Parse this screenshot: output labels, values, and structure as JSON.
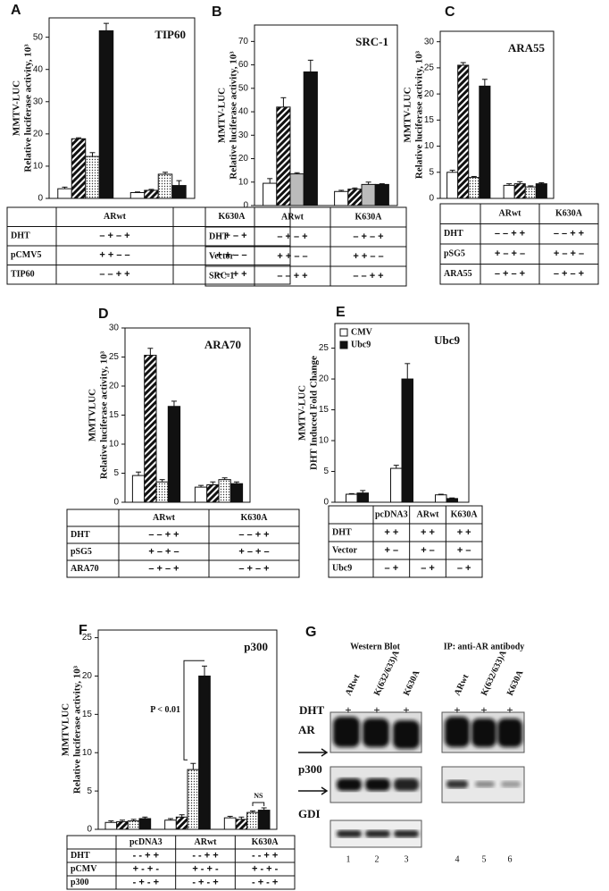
{
  "chart_data": [
    {
      "type": "bar",
      "panel": "A",
      "title": "TIP60",
      "y_label": [
        "MMTV-LUC",
        "Relative luciferase activity, 10³"
      ],
      "values": [
        3,
        18.5,
        13,
        52,
        1.8,
        2.5,
        7.5,
        4
      ],
      "errors": [
        0.5,
        0.3,
        1.2,
        2.3,
        0.2,
        0.3,
        0.6,
        1.5
      ],
      "fills": [
        "white",
        "hatch",
        "dots",
        "black"
      ],
      "ylim": [
        0,
        56
      ],
      "yticks": [
        0,
        10,
        20,
        30,
        40,
        50
      ],
      "table": {
        "groups": [
          "ARwt",
          "K630A"
        ],
        "rows": [
          {
            "label": "DHT",
            "signs": [
              "– + – +",
              "– + – +"
            ]
          },
          {
            "label": "pCMV5",
            "signs": [
              "+ + – –",
              "+ + – –"
            ]
          },
          {
            "label": "TIP60",
            "signs": [
              "– – + +",
              "– – + +"
            ]
          }
        ]
      }
    },
    {
      "type": "bar",
      "panel": "B",
      "title": "SRC-1",
      "y_label": [
        "MMTV-LUC",
        "Relative luciferase activity, 10³"
      ],
      "values": [
        9.5,
        42,
        13.5,
        57,
        6,
        7,
        9,
        9
      ],
      "errors": [
        2,
        4,
        0.5,
        5,
        0.5,
        0.5,
        1,
        0.3
      ],
      "fills": [
        "white",
        "hatch",
        "gray",
        "black"
      ],
      "ylim": [
        0,
        77
      ],
      "yticks": [
        0,
        10,
        20,
        30,
        40,
        50,
        60,
        70
      ],
      "table": {
        "groups": [
          "ARwt",
          "K630A"
        ],
        "rows": [
          {
            "label": "DHT",
            "signs": [
              "– + – +",
              "– + – +"
            ]
          },
          {
            "label": "Vector",
            "signs": [
              "+ + – –",
              "+ + – –"
            ]
          },
          {
            "label": "SRC-1",
            "signs": [
              "– – + +",
              "– – + +"
            ]
          }
        ]
      }
    },
    {
      "type": "bar",
      "panel": "C",
      "title": "ARA55",
      "y_label": [
        "MMTV-LUC",
        "Relative luciferase activity, 10³"
      ],
      "values": [
        5,
        25.5,
        4,
        21.5,
        2.5,
        2.8,
        2.2,
        2.8
      ],
      "errors": [
        0.4,
        0.5,
        0.2,
        1.3,
        0.3,
        0.4,
        0.2,
        0.2
      ],
      "fills": [
        "white",
        "hatch",
        "dots",
        "black"
      ],
      "ylim": [
        0,
        32
      ],
      "yticks": [
        0,
        5,
        10,
        15,
        20,
        25,
        30
      ],
      "table": {
        "groups": [
          "ARwt",
          "K630A"
        ],
        "rows": [
          {
            "label": "DHT",
            "signs": [
              "– – + +",
              "– – + +"
            ]
          },
          {
            "label": "pSG5",
            "signs": [
              "+ – + –",
              "+ – + –"
            ]
          },
          {
            "label": "ARA55",
            "signs": [
              "– + – +",
              "– + – +"
            ]
          }
        ]
      }
    },
    {
      "type": "bar",
      "panel": "D",
      "title": "ARA70",
      "y_label": [
        "MMTVLUC",
        "Relative luciferase activity, 10³"
      ],
      "values": [
        4.6,
        25.3,
        3.5,
        16.5,
        2.6,
        3,
        3.9,
        3.2
      ],
      "errors": [
        0.6,
        1.2,
        0.4,
        0.9,
        0.3,
        0.5,
        0.3,
        0.3
      ],
      "fills": [
        "white",
        "hatch",
        "dots",
        "black"
      ],
      "ylim": [
        0,
        30
      ],
      "yticks": [
        0,
        5,
        10,
        15,
        20,
        25,
        30
      ],
      "table": {
        "groups": [
          "ARwt",
          "K630A"
        ],
        "rows": [
          {
            "label": "DHT",
            "signs": [
              "– – + +",
              "– – + +"
            ]
          },
          {
            "label": "pSG5",
            "signs": [
              "+ – + –",
              "+ – + –"
            ]
          },
          {
            "label": "ARA70",
            "signs": [
              "– + – +",
              "– + – +"
            ]
          }
        ]
      }
    },
    {
      "type": "grouped_bar",
      "panel": "E",
      "title": "Ubc9",
      "y_label": [
        "MMTV-LUC",
        "DHT Induced Fold Change"
      ],
      "series": [
        {
          "name": "CMV",
          "color": "white",
          "values": [
            1.3,
            5.5,
            1.2
          ],
          "errors": [
            0.1,
            0.5,
            0.1
          ]
        },
        {
          "name": "Ubc9",
          "color": "black",
          "values": [
            1.5,
            20,
            0.6
          ],
          "errors": [
            0.4,
            2.5,
            0.1
          ]
        }
      ],
      "legend": "upper left",
      "ylim": [
        0,
        29
      ],
      "yticks": [
        0,
        5,
        10,
        15,
        20,
        25
      ],
      "table": {
        "groups": [
          "pcDNA3",
          "ARwt",
          "K630A"
        ],
        "rows": [
          {
            "label": "DHT",
            "signs": [
              "+ +",
              "+ +",
              "+ +"
            ]
          },
          {
            "label": "Vector",
            "signs": [
              "+ –",
              "+ –",
              "+ –"
            ]
          },
          {
            "label": "Ubc9",
            "signs": [
              "– +",
              "– +",
              "– +"
            ]
          }
        ]
      }
    },
    {
      "type": "bar",
      "panel": "F",
      "title": "p300",
      "y_label": [
        "MMTVLUC",
        "Relative luciferase activity, 10³"
      ],
      "values": [
        0.9,
        1,
        1.1,
        1.4,
        1.2,
        1.6,
        7.8,
        20,
        1.5,
        1.3,
        2.2,
        2.5
      ],
      "errors": [
        0.2,
        0.2,
        0.2,
        0.2,
        0.2,
        0.3,
        0.8,
        1.3,
        0.2,
        0.3,
        0.2,
        0.3
      ],
      "fills": [
        "white",
        "hatch",
        "dots",
        "black"
      ],
      "ylim": [
        0,
        26
      ],
      "yticks": [
        0,
        5,
        10,
        15,
        20,
        25
      ],
      "annotations": [
        "P < 0.01",
        "NS"
      ],
      "table": {
        "groups": [
          "pcDNA3",
          "ARwt",
          "K630A"
        ],
        "rows": [
          {
            "label": "DHT",
            "signs": [
              "- - + +",
              "- - + +",
              "- - + +"
            ]
          },
          {
            "label": "pCMV",
            "signs": [
              "+ - + -",
              "+ - + -",
              "+ - + -"
            ]
          },
          {
            "label": "p300",
            "signs": [
              "- + - +",
              "- + - +",
              "- + - +"
            ]
          }
        ]
      }
    }
  ],
  "blot": {
    "panel": "G",
    "headers": [
      "Western Blot",
      "IP:  anti-AR antibody"
    ],
    "lanes": [
      "ARwt",
      "K(632/633)A",
      "K630A",
      "ARwt",
      "K(632/633)A",
      "K630A"
    ],
    "treatment": "DHT",
    "treatment_signs": [
      "+",
      "+",
      "+",
      "+",
      "+",
      "+"
    ],
    "rows": [
      "AR",
      "p300",
      "GDI"
    ],
    "lane_numbers": [
      1,
      2,
      3,
      4,
      5,
      6
    ]
  }
}
